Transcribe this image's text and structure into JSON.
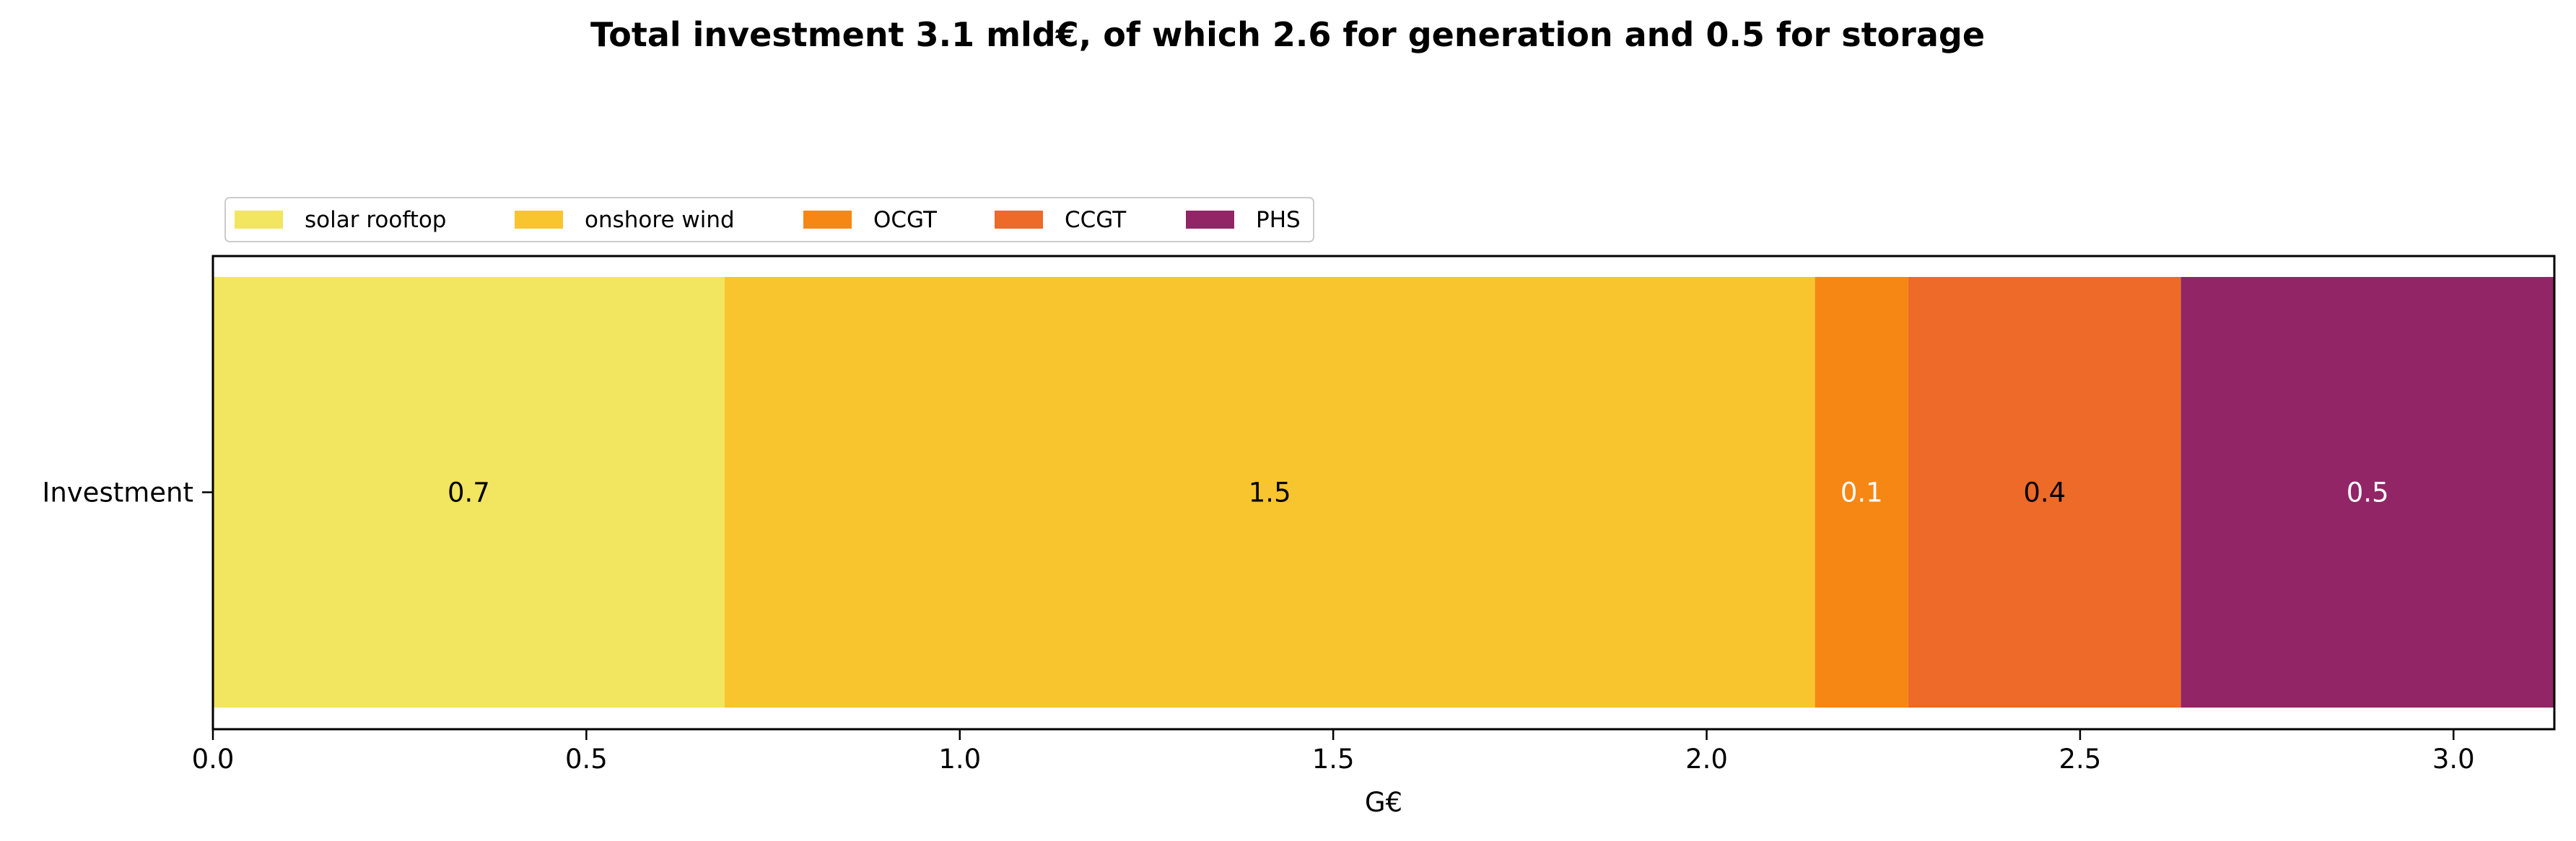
{
  "chart_data": {
    "type": "bar",
    "orientation": "horizontal-stacked",
    "title": "Total investment 3.1 mld€, of which 2.6 for generation and 0.5 for storage",
    "xlabel": "G€",
    "ylabel": "",
    "categories": [
      "Investment"
    ],
    "xlim": [
      0,
      3.135
    ],
    "xticks": [
      0.0,
      0.5,
      1.0,
      1.5,
      2.0,
      2.5,
      3.0
    ],
    "xtick_labels": [
      "0.0",
      "0.5",
      "1.0",
      "1.5",
      "2.0",
      "2.5",
      "3.0"
    ],
    "grid": false,
    "legend_position": "top-left",
    "series": [
      {
        "name": "solar rooftop",
        "values": [
          0.685
        ],
        "color": "#f2e55f",
        "label": "0.7",
        "label_color": "#000000"
      },
      {
        "name": "onshore wind",
        "values": [
          1.46
        ],
        "color": "#f8c52f",
        "label": "1.5",
        "label_color": "#000000"
      },
      {
        "name": "OCGT",
        "values": [
          0.125
        ],
        "color": "#f78714",
        "label": "0.1",
        "label_color": "#ffffff"
      },
      {
        "name": "CCGT",
        "values": [
          0.365
        ],
        "color": "#ed6a28",
        "label": "0.4",
        "label_color": "#000000"
      },
      {
        "name": "PHS",
        "values": [
          0.5
        ],
        "color": "#922565",
        "label": "0.5",
        "label_color": "#ffffff"
      }
    ]
  }
}
